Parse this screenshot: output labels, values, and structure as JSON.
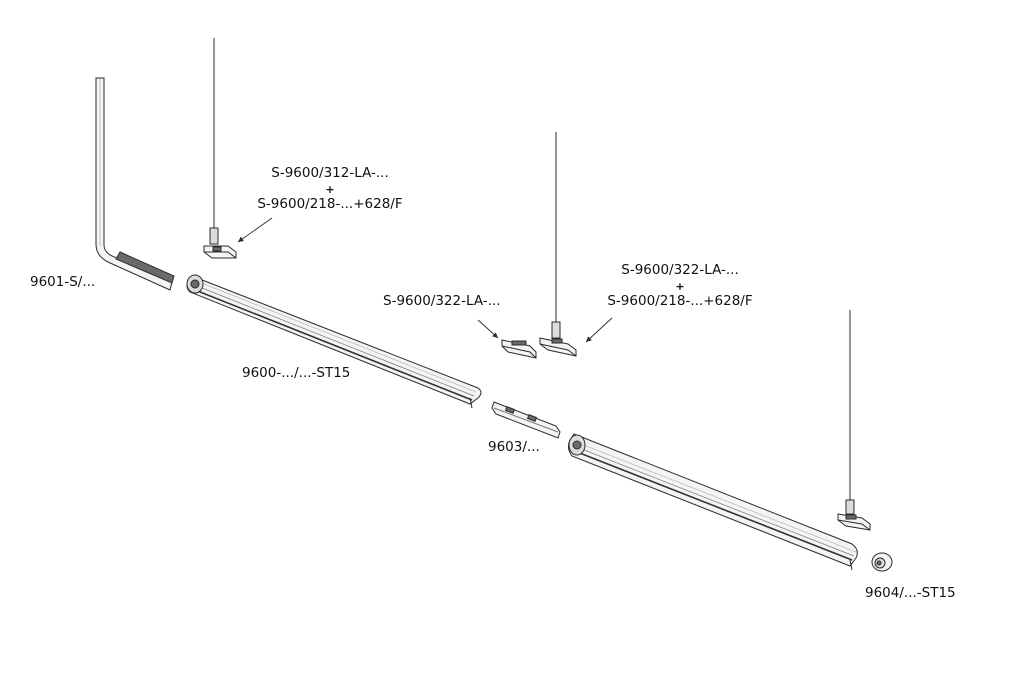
{
  "labels": {
    "end_bend": "9601-S/...",
    "profile_left": "9600-.../...-ST15",
    "joint": "9603/...",
    "end_cap": "9604/...-ST15",
    "suspension_left_line1": "S-9600/312-LA-...",
    "suspension_left_plus": "+",
    "suspension_left_line2": "S-9600/218-...+628/F",
    "suspension_mid_single": "S-9600/322-LA-...",
    "suspension_right_line1": "S-9600/322-LA-...",
    "suspension_right_plus": "+",
    "suspension_right_line2": "S-9600/218-...+628/F"
  },
  "colors": {
    "stroke": "#2b2b2b",
    "fill_light": "#f4f4f4",
    "fill_mid": "#dcdcdc",
    "fill_dark": "#6a6a6a"
  }
}
